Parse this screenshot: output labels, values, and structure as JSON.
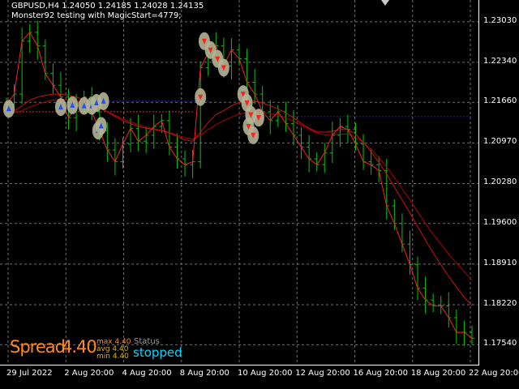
{
  "header": {
    "symbol_line": "GBPUSD,H4  1.24050 1.24185 1.24028 1.24135",
    "ea_line": "Monster92 testing with MagicStart=4779;"
  },
  "price_axis": {
    "labels": [
      "1.23030",
      "1.22340",
      "1.21660",
      "1.20970",
      "1.20280",
      "1.19600",
      "1.18910",
      "1.18220",
      "1.17540"
    ]
  },
  "date_axis": {
    "labels": [
      "29 Jul 2022",
      "2 Aug 20:00",
      "4 Aug 20:00",
      "8 Aug 20:00",
      "10 Aug 20:00",
      "12 Aug 20:00",
      "16 Aug 20:00",
      "18 Aug 20:00",
      "22 Aug 20:00"
    ]
  },
  "spread_panel": {
    "label": "Spread",
    "value": "4.40",
    "max": "max 4.40",
    "avg": "avg 4.40",
    "min": "min 4.40"
  },
  "status_panel": {
    "label": "Status",
    "value": "stopped"
  },
  "colors": {
    "background": "#000000",
    "grid": "#6f6f6f",
    "candle": "#00c800",
    "close_line": "#ff2020",
    "ma_fast": "#d01010",
    "ma_slow": "#b00000",
    "level": "#2020c8",
    "spread": "#ff8a1c",
    "status": "#00d8ff",
    "trade_halo": "#b4b496",
    "buy_marker": "#2050ff",
    "sell_marker": "#ff2020"
  },
  "chart_data": {
    "type": "line",
    "timeframe": "H4",
    "ylim": [
      1.172,
      1.234
    ],
    "close": [
      1.2163,
      1.218,
      1.227,
      1.2285,
      1.2262,
      1.2215,
      1.2195,
      1.2175,
      1.214,
      1.216,
      1.2175,
      1.215,
      1.2118,
      1.2085,
      1.2065,
      1.2095,
      1.2122,
      1.21,
      1.211,
      1.2125,
      1.2135,
      1.209,
      1.207,
      1.206,
      1.2065,
      1.2225,
      1.225,
      1.2262,
      1.2228,
      1.2255,
      1.224,
      1.22,
      1.218,
      1.215,
      1.2135,
      1.215,
      1.213,
      1.211,
      1.209,
      1.207,
      1.206,
      1.208,
      1.211,
      1.2125,
      1.212,
      1.2095,
      1.2065,
      1.206,
      1.205,
      1.199,
      1.196,
      1.1925,
      1.189,
      1.185,
      1.183,
      1.182,
      1.182,
      1.18,
      1.1775,
      1.1775,
      1.1765
    ],
    "ma_fast": [
      1.215,
      1.2152,
      1.216,
      1.217,
      1.2175,
      1.2178,
      1.218,
      1.218,
      1.2178,
      1.2175,
      1.217,
      1.2165,
      1.2158,
      1.215,
      1.2142,
      1.2135,
      1.213,
      1.2125,
      1.2122,
      1.212,
      1.2118,
      1.2114,
      1.2108,
      1.2102,
      1.21,
      1.2115,
      1.2132,
      1.2145,
      1.2152,
      1.216,
      1.2166,
      1.2168,
      1.2168,
      1.2165,
      1.216,
      1.2155,
      1.2148,
      1.214,
      1.213,
      1.2122,
      1.2116,
      1.2115,
      1.2117,
      1.212,
      1.212,
      1.2112,
      1.2098,
      1.2082,
      1.2064,
      1.2044,
      1.2022,
      1.2,
      1.1978,
      1.1955,
      1.1932,
      1.191,
      1.189,
      1.187,
      1.1852,
      1.1835,
      1.182
    ],
    "ma_slow": [
      1.2145,
      1.2148,
      1.2152,
      1.2158,
      1.2163,
      1.2167,
      1.217,
      1.2171,
      1.2171,
      1.2169,
      1.2166,
      1.2162,
      1.2156,
      1.215,
      1.2144,
      1.2138,
      1.2133,
      1.2128,
      1.2124,
      1.2121,
      1.2118,
      1.2115,
      1.211,
      1.2106,
      1.2103,
      1.211,
      1.212,
      1.2128,
      1.2135,
      1.2141,
      1.2146,
      1.2149,
      1.215,
      1.2149,
      1.2147,
      1.2144,
      1.214,
      1.2134,
      1.2127,
      1.212,
      1.2114,
      1.2111,
      1.2111,
      1.2112,
      1.2112,
      1.2107,
      1.2098,
      1.2086,
      1.2072,
      1.2056,
      1.2038,
      1.2019,
      1.2,
      1.198,
      1.196,
      1.1942,
      1.1925,
      1.1908,
      1.1893,
      1.1878,
      1.1864
    ],
    "levels": [
      {
        "price": 1.215,
        "x_start": 0,
        "x_end": 24,
        "color": "red"
      },
      {
        "price": 1.2168,
        "x_start": 7,
        "x_end": 26,
        "color": "blue"
      },
      {
        "price": 1.2142,
        "x_start": 30,
        "x_end": 60,
        "color": "blue"
      }
    ],
    "trades": [
      {
        "x": 0.3,
        "price": 1.2155,
        "side": "buy"
      },
      {
        "x": 7.0,
        "price": 1.2158,
        "side": "buy"
      },
      {
        "x": 8.5,
        "price": 1.2161,
        "side": "buy"
      },
      {
        "x": 10.0,
        "price": 1.216,
        "side": "buy"
      },
      {
        "x": 11.0,
        "price": 1.216,
        "side": "buy"
      },
      {
        "x": 11.6,
        "price": 1.2165,
        "side": "buy"
      },
      {
        "x": 12.5,
        "price": 1.2168,
        "side": "buy"
      },
      {
        "x": 11.8,
        "price": 1.2118,
        "side": "buy"
      },
      {
        "x": 12.2,
        "price": 1.2126,
        "side": "buy"
      },
      {
        "x": 25.5,
        "price": 1.227,
        "side": "sell"
      },
      {
        "x": 26.3,
        "price": 1.2255,
        "side": "sell"
      },
      {
        "x": 27.2,
        "price": 1.224,
        "side": "sell"
      },
      {
        "x": 28.0,
        "price": 1.2225,
        "side": "sell"
      },
      {
        "x": 25.0,
        "price": 1.2175,
        "side": "sell"
      },
      {
        "x": 30.5,
        "price": 1.218,
        "side": "sell"
      },
      {
        "x": 31.0,
        "price": 1.2165,
        "side": "sell"
      },
      {
        "x": 31.5,
        "price": 1.2145,
        "side": "sell"
      },
      {
        "x": 31.2,
        "price": 1.2125,
        "side": "sell"
      },
      {
        "x": 31.8,
        "price": 1.211,
        "side": "sell"
      },
      {
        "x": 32.5,
        "price": 1.214,
        "side": "sell"
      }
    ]
  }
}
